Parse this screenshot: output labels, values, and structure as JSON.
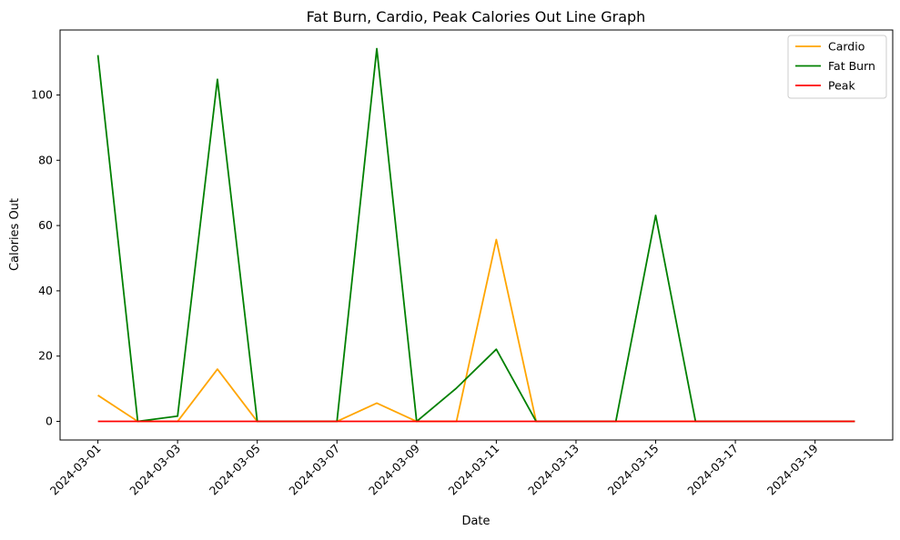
{
  "chart_data": {
    "type": "line",
    "title": "Fat Burn, Cardio, Peak Calories Out Line Graph",
    "xlabel": "Date",
    "ylabel": "Calories Out",
    "x": [
      "2024-03-01",
      "2024-03-02",
      "2024-03-03",
      "2024-03-04",
      "2024-03-05",
      "2024-03-06",
      "2024-03-07",
      "2024-03-08",
      "2024-03-09",
      "2024-03-10",
      "2024-03-11",
      "2024-03-12",
      "2024-03-13",
      "2024-03-14",
      "2024-03-15",
      "2024-03-16",
      "2024-03-17",
      "2024-03-18",
      "2024-03-19",
      "2024-03-20"
    ],
    "xticks": [
      "2024-03-01",
      "2024-03-03",
      "2024-03-05",
      "2024-03-07",
      "2024-03-09",
      "2024-03-11",
      "2024-03-13",
      "2024-03-15",
      "2024-03-17",
      "2024-03-19"
    ],
    "yticks": [
      0,
      20,
      40,
      60,
      80,
      100
    ],
    "ylim": [
      -5.7,
      119.9
    ],
    "grid": false,
    "legend_position": "top-right",
    "series": [
      {
        "name": "Cardio",
        "color": "#ffa500",
        "values": [
          8,
          0,
          0,
          16,
          0,
          0,
          0,
          5.6,
          0,
          0,
          55.7,
          0,
          0,
          0,
          0,
          0,
          0,
          0,
          0,
          0
        ]
      },
      {
        "name": "Fat Burn",
        "color": "#008000",
        "values": [
          112.2,
          0,
          1.6,
          104.8,
          0,
          0,
          0,
          114.2,
          0,
          10.2,
          22.1,
          0,
          0,
          0,
          63.1,
          0,
          0,
          0,
          0,
          0
        ]
      },
      {
        "name": "Peak",
        "color": "#ff0000",
        "values": [
          0,
          0,
          0,
          0,
          0,
          0,
          0,
          0,
          0,
          0,
          0,
          0,
          0,
          0,
          0,
          0,
          0,
          0,
          0,
          0
        ]
      }
    ]
  }
}
